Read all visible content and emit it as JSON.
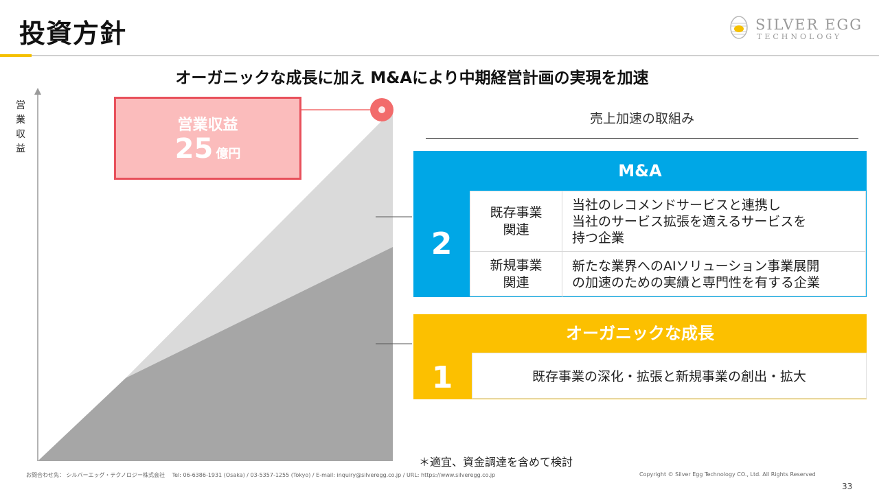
{
  "header": {
    "title": "投資方針",
    "logo_line1": "SILVER EGG",
    "logo_line2": "TECHNOLOGY"
  },
  "subtitle": "オーガニックな成長に加え M&Aにより中期経営計画の実現を加速",
  "chart": {
    "y_axis_label": "営業収益",
    "target_label": "営業収益",
    "target_value": "25",
    "target_unit": "億円",
    "colors": {
      "organic": "#a6a6a6",
      "ma": "#dadada",
      "target_marker": "#f26b6b",
      "target_box_fill": "#fbbcbc",
      "target_box_border": "#e8505b"
    }
  },
  "initiatives": {
    "title": "売上加速の取組み",
    "ma": {
      "number": "2",
      "header": "M&A",
      "color": "#00a7e6",
      "rows": [
        {
          "category": [
            "既存事業",
            "関連"
          ],
          "description": [
            "当社のレコメンドサービスと連携し",
            "当社のサービス拡張を適えるサービスを",
            "持つ企業"
          ]
        },
        {
          "category": [
            "新規事業",
            "関連"
          ],
          "description": [
            "新たな業界へのAIソリューション事業展開",
            "の加速のための実績と専門性を有する企業"
          ]
        }
      ]
    },
    "organic": {
      "number": "1",
      "header": "オーガニックな成長",
      "color": "#fcc000",
      "description": "既存事業の深化・拡張と新規事業の創出・拡大"
    }
  },
  "note": "＊適宜、資金調達を含めて検討",
  "footer": {
    "contact": "お問合わせ先： シルバーエッグ・テクノロジー株式会社　 Tel: 06-6386-1931 (Osaka) / 03-5357-1255 (Tokyo) / E-mail: inquiry@silveregg.co.jp / URL: https://www.silveregg.co.jp",
    "copyright": "Copyright © Silver Egg Technology CO., Ltd. All Rights Reserved",
    "page_number": "33"
  }
}
